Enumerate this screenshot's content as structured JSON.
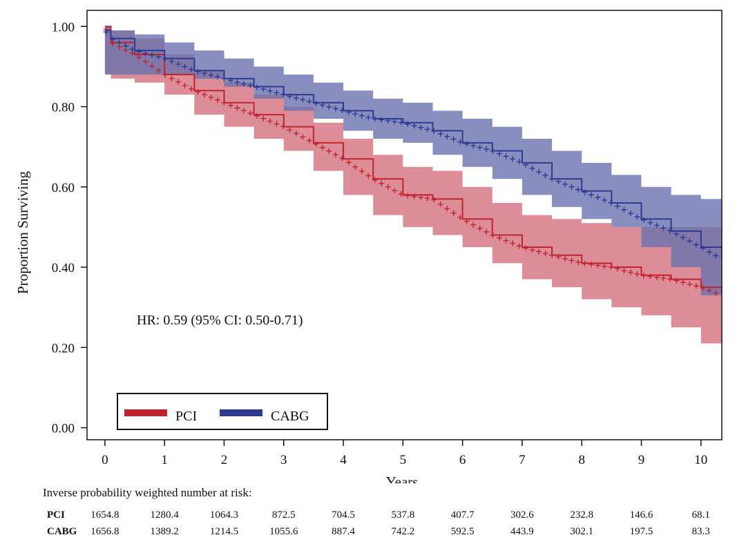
{
  "chart_data": {
    "type": "line",
    "subtype": "kaplan-meier",
    "xlabel": "Years",
    "ylabel": "Proportion Surviving",
    "xlim": [
      -0.3,
      10.35
    ],
    "ylim": [
      -0.03,
      1.04
    ],
    "x_ticks": [
      0,
      1,
      2,
      3,
      4,
      5,
      6,
      7,
      8,
      9,
      10
    ],
    "x_tick_labels": [
      "0",
      "1",
      "2",
      "3",
      "4",
      "5",
      "6",
      "7",
      "8",
      "9",
      "10"
    ],
    "y_ticks": [
      0,
      0.2,
      0.4,
      0.6,
      0.8,
      1.0
    ],
    "y_tick_labels": [
      "0.00",
      "0.20",
      "0.40",
      "0.60",
      "0.80",
      "1.00"
    ],
    "annotation": "HR: 0.59 (95% CI: 0.50-0.71)",
    "legend": {
      "placement": "bottom-left"
    },
    "series": [
      {
        "name": "PCI",
        "color": "#c0232e",
        "band_color": "#d3707e",
        "x": [
          0,
          0.1,
          0.5,
          1,
          1.5,
          2,
          2.5,
          3,
          3.5,
          4,
          4.5,
          5,
          5.5,
          6,
          6.5,
          7,
          7.5,
          8,
          8.5,
          9,
          9.5,
          10,
          10.35
        ],
        "y": [
          1.0,
          0.96,
          0.93,
          0.88,
          0.84,
          0.81,
          0.78,
          0.75,
          0.71,
          0.67,
          0.62,
          0.58,
          0.57,
          0.52,
          0.48,
          0.45,
          0.43,
          0.41,
          0.4,
          0.38,
          0.37,
          0.35,
          0.33
        ],
        "lower": [
          0.88,
          0.87,
          0.86,
          0.83,
          0.78,
          0.75,
          0.72,
          0.69,
          0.64,
          0.58,
          0.53,
          0.5,
          0.48,
          0.45,
          0.41,
          0.37,
          0.35,
          0.32,
          0.3,
          0.28,
          0.25,
          0.21,
          0.15
        ],
        "upper": [
          1.0,
          0.99,
          0.97,
          0.93,
          0.89,
          0.86,
          0.83,
          0.8,
          0.76,
          0.72,
          0.68,
          0.65,
          0.64,
          0.6,
          0.56,
          0.53,
          0.52,
          0.51,
          0.5,
          0.5,
          0.5,
          0.5,
          0.5
        ]
      },
      {
        "name": "CABG",
        "color": "#2e3a91",
        "band_color": "#6a73ae",
        "x": [
          0,
          0.1,
          0.5,
          1,
          1.5,
          2,
          2.5,
          3,
          3.5,
          4,
          4.5,
          5,
          5.5,
          6,
          6.5,
          7,
          7.5,
          8,
          8.5,
          9,
          9.5,
          10,
          10.35
        ],
        "y": [
          0.99,
          0.97,
          0.94,
          0.92,
          0.89,
          0.87,
          0.85,
          0.83,
          0.81,
          0.79,
          0.77,
          0.76,
          0.74,
          0.71,
          0.69,
          0.66,
          0.62,
          0.59,
          0.56,
          0.52,
          0.49,
          0.45,
          0.42
        ],
        "lower": [
          0.88,
          0.88,
          0.88,
          0.88,
          0.87,
          0.85,
          0.82,
          0.79,
          0.77,
          0.74,
          0.72,
          0.71,
          0.68,
          0.65,
          0.62,
          0.58,
          0.55,
          0.52,
          0.5,
          0.45,
          0.4,
          0.33,
          0.28
        ],
        "upper": [
          1.0,
          0.99,
          0.98,
          0.96,
          0.94,
          0.92,
          0.9,
          0.88,
          0.86,
          0.84,
          0.82,
          0.81,
          0.79,
          0.77,
          0.75,
          0.72,
          0.69,
          0.66,
          0.63,
          0.6,
          0.58,
          0.57,
          0.56
        ]
      }
    ],
    "risk_table": {
      "title": "Inverse probability weighted number at risk:",
      "rows": [
        {
          "label": "PCI",
          "values": [
            "1654.8",
            "1280.4",
            "1064.3",
            "872.5",
            "704.5",
            "537.8",
            "407.7",
            "302.6",
            "232.8",
            "146.6",
            "68.1"
          ]
        },
        {
          "label": "CABG",
          "values": [
            "1656.8",
            "1389.2",
            "1214.5",
            "1055.6",
            "887.4",
            "742.2",
            "592.5",
            "443.9",
            "302.1",
            "197.5",
            "83.3"
          ]
        }
      ]
    }
  }
}
